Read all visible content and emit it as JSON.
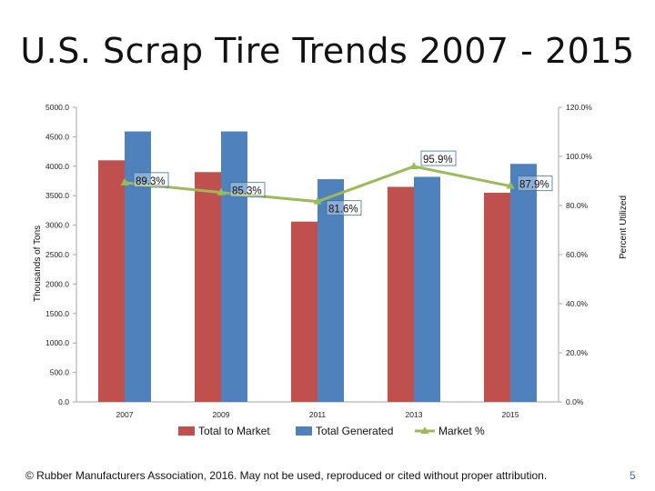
{
  "slide": {
    "title": "U.S. Scrap Tire Trends 2007 - 2015",
    "footer": "© Rubber Manufacturers Association, 2016.  May not be used, reproduced or cited without proper attribution.",
    "page_number": "5"
  },
  "chart_data": {
    "type": "bar",
    "categories": [
      "2007",
      "2009",
      "2011",
      "2013",
      "2015"
    ],
    "series": [
      {
        "name": "Total to Market",
        "type": "bar",
        "axis": "left",
        "color": "#c0504d",
        "values": [
          4100,
          3900,
          3060,
          3650,
          3550
        ]
      },
      {
        "name": "Total Generated",
        "type": "bar",
        "axis": "left",
        "color": "#4f81bd",
        "values": [
          4590,
          4590,
          3780,
          3820,
          4040
        ]
      },
      {
        "name": "Market %",
        "type": "line",
        "axis": "right",
        "color": "#9bbb59",
        "values": [
          89.3,
          85.3,
          81.6,
          95.9,
          87.9
        ],
        "labels": [
          "89.3%",
          "85.3%",
          "81.6%",
          "95.9%",
          "87.9%"
        ]
      }
    ],
    "ylabel": "Thousands of Tons",
    "y2label": "Percent Utilized",
    "ylim": [
      0,
      5000
    ],
    "y2lim": [
      0,
      120
    ],
    "yticks": [
      "0.0",
      "500.0",
      "1000.0",
      "1500.0",
      "2000.0",
      "2500.0",
      "3000.0",
      "3500.0",
      "4000.0",
      "4500.0",
      "5000.0"
    ],
    "y2ticks": [
      "0.0%",
      "20.0%",
      "40.0%",
      "60.0%",
      "80.0%",
      "100.0%",
      "120.0%"
    ],
    "legend_position": "bottom",
    "grid": false
  }
}
